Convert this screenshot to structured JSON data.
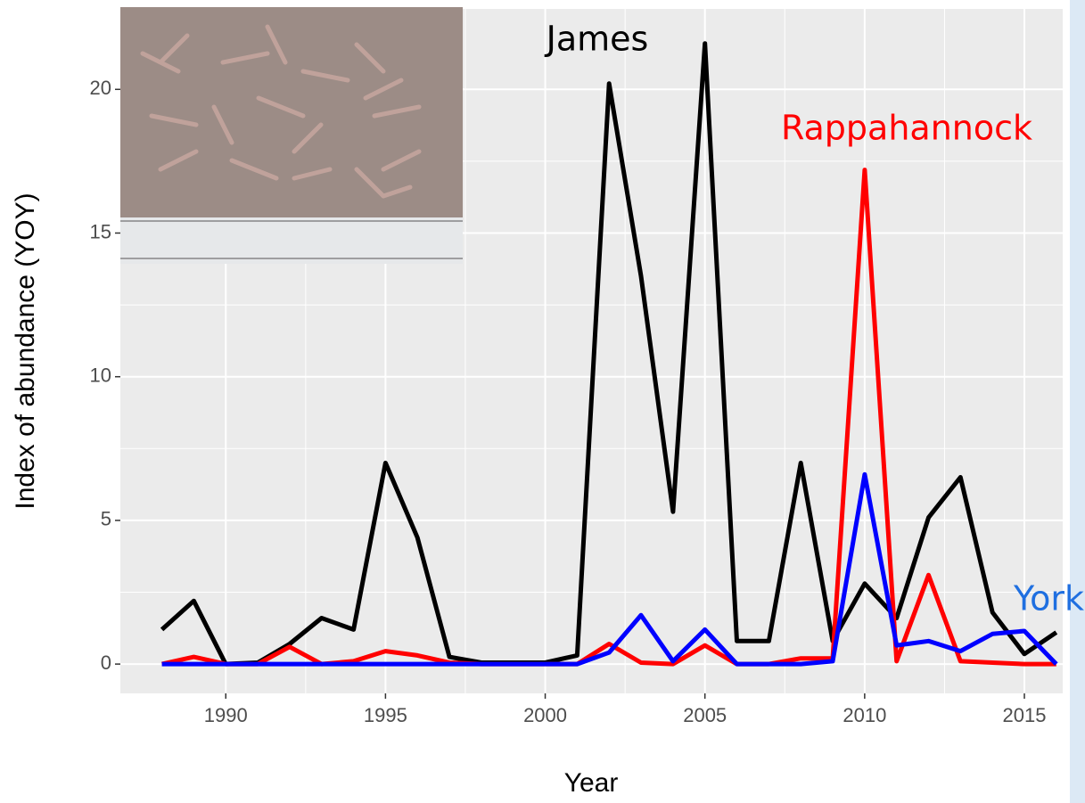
{
  "chart_data": {
    "type": "line",
    "x_label": "Year",
    "y_label": "Index of abundance (YOY)",
    "x": [
      1988,
      1989,
      1990,
      1991,
      1992,
      1993,
      1994,
      1995,
      1996,
      1997,
      1998,
      1999,
      2000,
      2001,
      2002,
      2003,
      2004,
      2005,
      2006,
      2007,
      2008,
      2009,
      2010,
      2011,
      2012,
      2013,
      2014,
      2015,
      2016
    ],
    "series": [
      {
        "name": "James",
        "color": "#000000",
        "values": [
          1.2,
          2.2,
          0,
          0.05,
          0.7,
          1.6,
          1.2,
          7.0,
          4.4,
          0.25,
          0.05,
          0.05,
          0.05,
          0.3,
          20.2,
          13.5,
          5.3,
          21.6,
          0.8,
          0.8,
          7.0,
          0.8,
          2.8,
          1.6,
          5.1,
          6.5,
          1.8,
          0.35,
          1.1
        ]
      },
      {
        "name": "Rappahannock",
        "color": "#ff0000",
        "values": [
          0,
          0.25,
          0,
          0,
          0.6,
          0,
          0.1,
          0.45,
          0.3,
          0.05,
          0,
          0,
          0,
          0,
          0.7,
          0.05,
          0,
          0.65,
          0,
          0,
          0.2,
          0.2,
          17.2,
          0.1,
          3.1,
          0.1,
          0.05,
          0,
          0
        ]
      },
      {
        "name": "York",
        "color": "#0000ff",
        "label_color": "#1f6fe0",
        "values": [
          0,
          0,
          0,
          0,
          0,
          0,
          0,
          0,
          0,
          0,
          0,
          0,
          0,
          0,
          0.4,
          1.7,
          0.1,
          1.2,
          0,
          0,
          0,
          0.1,
          6.6,
          0.65,
          0.8,
          0.45,
          1.05,
          1.15,
          0
        ]
      }
    ],
    "xlim": [
      1986.7,
      2016.2
    ],
    "ylim": [
      -1.02,
      22.8
    ],
    "xticks": [
      1990,
      1995,
      2000,
      2005,
      2010,
      2015
    ],
    "yticks": [
      0,
      5,
      10,
      15,
      20
    ],
    "grid": true,
    "panel_color": "#ebebeb"
  }
}
